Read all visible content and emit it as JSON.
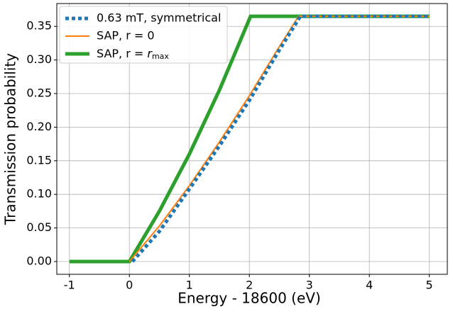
{
  "chart_data": {
    "type": "line",
    "x_label": "Energy - 18600 (eV)",
    "y_label": "Transmission probability",
    "series": [
      {
        "name": "0.63 mT, symmetrical",
        "color": "#1f77b4",
        "dash": "dotted",
        "x": [
          0.05,
          0.5,
          1,
          1.5,
          2,
          2.5,
          2.85,
          5
        ],
        "values": [
          0,
          0.045,
          0.108,
          0.172,
          0.24,
          0.315,
          0.365,
          0.365
        ]
      },
      {
        "name": "SAP, r = 0",
        "color": "#ff7f0e",
        "dash": "solid",
        "x": [
          0,
          0.5,
          1,
          1.5,
          2,
          2.5,
          2.82,
          5
        ],
        "values": [
          0,
          0.053,
          0.113,
          0.178,
          0.247,
          0.32,
          0.365,
          0.365
        ]
      },
      {
        "name": "SAP, r = rmax",
        "color": "#2ca02c",
        "dash": "solid",
        "x": [
          -1,
          0,
          0.5,
          1,
          1.5,
          2.02,
          5
        ],
        "values": [
          0,
          0,
          0.075,
          0.16,
          0.255,
          0.365,
          0.365
        ]
      }
    ],
    "xlim": [
      -1.21,
      5.3
    ],
    "ylim": [
      -0.019,
      0.384
    ],
    "xticks": [
      -1,
      0,
      1,
      2,
      3,
      4,
      5
    ],
    "yticks": [
      {
        "value": 0,
        "label": "0.00"
      },
      {
        "value": 0.05,
        "label": "0.05"
      },
      {
        "value": 0.1,
        "label": "0.10"
      },
      {
        "value": 0.15,
        "label": "0.15"
      },
      {
        "value": 0.2,
        "label": "0.20"
      },
      {
        "value": 0.25,
        "label": "0.25"
      },
      {
        "value": 0.3,
        "label": "0.30"
      },
      {
        "value": 0.35,
        "label": "0.35"
      }
    ],
    "grid": true,
    "legend": "upper left"
  }
}
